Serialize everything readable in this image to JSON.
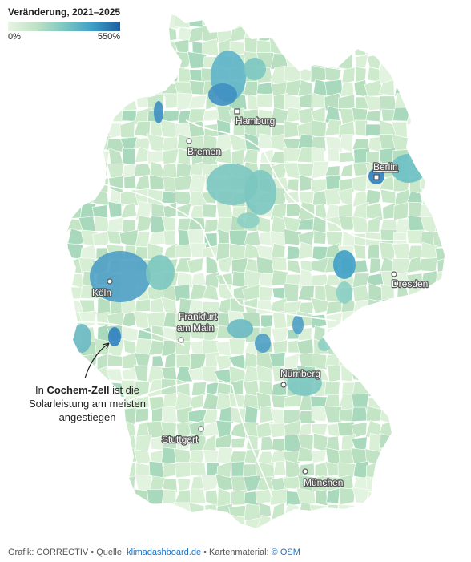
{
  "legend": {
    "title": "Veränderung, 2021–2025",
    "min_label": "0%",
    "max_label": "550%",
    "colors": [
      "#e8f4e4",
      "#bfe2c6",
      "#7cc7c1",
      "#3f9fc7",
      "#1f5fa0"
    ]
  },
  "map": {
    "base_color": "#cfe9cf",
    "border_color": "#ffffff",
    "cities": [
      {
        "name": "Hamburg",
        "id": "hamburg"
      },
      {
        "name": "Bremen",
        "id": "bremen"
      },
      {
        "name": "Berlin",
        "id": "berlin"
      },
      {
        "name": "Köln",
        "id": "koeln"
      },
      {
        "name": "Frankfurt am Main",
        "line1": "Frankfurt",
        "line2": "am Main",
        "id": "frankfurt"
      },
      {
        "name": "Dresden",
        "id": "dresden"
      },
      {
        "name": "Nürnberg",
        "id": "nuernberg"
      },
      {
        "name": "Stuttgart",
        "id": "stuttgart"
      },
      {
        "name": "München",
        "id": "muenchen"
      }
    ],
    "highlight_region": "Cochem-Zell"
  },
  "annotation": {
    "prefix": "In ",
    "bold": "Cochem-Zell",
    "suffix": " ist die Solarleistung am meisten angestiegen"
  },
  "footer": {
    "credit": "Grafik: CORRECTIV • Quelle: ",
    "source_link": "klimadashboard.de",
    "map_prefix": " • Kartenmaterial: ",
    "map_link": "© OSM"
  }
}
